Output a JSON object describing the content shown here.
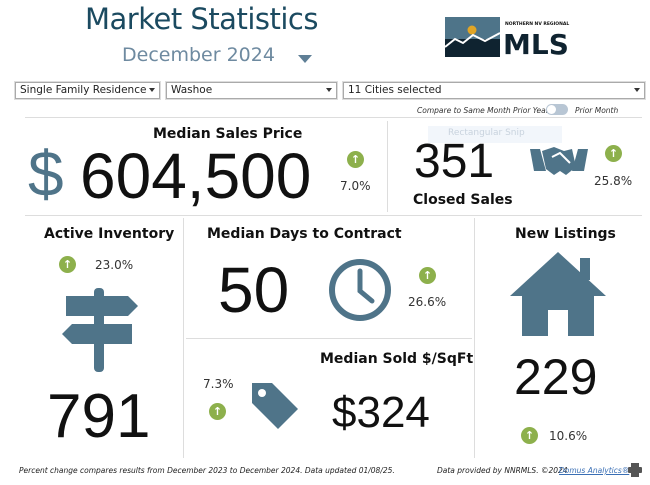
{
  "header": {
    "title": "Market Statistics",
    "month": "December 2024"
  },
  "logo": {
    "small": "NORTHERN NV REGIONAL",
    "big": "MLS"
  },
  "filters": {
    "property_type": "Single Family Residence",
    "county": "Washoe",
    "cities": "11 Cities selected"
  },
  "compare": {
    "left": "Compare to Same Month Prior Year",
    "right": "Prior Month"
  },
  "overlay": "Rectangular Snip",
  "median_price": {
    "label": "Median Sales Price",
    "value": "604,500",
    "currency": "$",
    "pct": "7.0%"
  },
  "closed_sales": {
    "label": "Closed Sales",
    "value": "351",
    "pct": "25.8%"
  },
  "inventory": {
    "label": "Active Inventory",
    "value": "791",
    "pct": "23.0%"
  },
  "days": {
    "label": "Median Days to Contract",
    "value": "50",
    "pct": "26.6%"
  },
  "sqft": {
    "label": "Median Sold $/SqFt",
    "value": "$324",
    "pct": "7.3%"
  },
  "listings": {
    "label": "New Listings",
    "value": "229",
    "pct": "10.6%"
  },
  "footer": {
    "note": "Percent change compares results from December 2023 to December 2024.  Data updated 01/08/25.",
    "provided": "Data provided by NNRMLS. ©2024",
    "link": "Domus Analytics®"
  },
  "colors": {
    "title": "#1b4a60",
    "icon": "#4f7489",
    "green": "#8db04c"
  }
}
